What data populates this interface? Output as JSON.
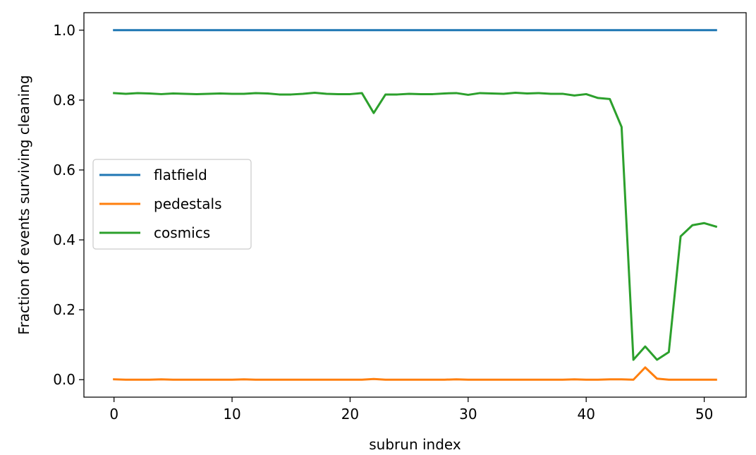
{
  "chart_data": {
    "type": "line",
    "xlabel": "subrun index",
    "ylabel": "Fraction of events surviving cleaning",
    "xlim": [
      -2.55,
      53.55
    ],
    "ylim": [
      -0.05,
      1.05
    ],
    "x_ticks": [
      0,
      10,
      20,
      30,
      40,
      50
    ],
    "x_tick_labels": [
      "0",
      "10",
      "20",
      "30",
      "40",
      "50"
    ],
    "y_ticks": [
      0.0,
      0.2,
      0.4,
      0.6,
      0.8,
      1.0
    ],
    "y_tick_labels": [
      "0.0",
      "0.2",
      "0.4",
      "0.6",
      "0.8",
      "1.0"
    ],
    "grid": false,
    "legend_position": "center-left",
    "x": [
      0,
      1,
      2,
      3,
      4,
      5,
      6,
      7,
      8,
      9,
      10,
      11,
      12,
      13,
      14,
      15,
      16,
      17,
      18,
      19,
      20,
      21,
      22,
      23,
      24,
      25,
      26,
      27,
      28,
      29,
      30,
      31,
      32,
      33,
      34,
      35,
      36,
      37,
      38,
      39,
      40,
      41,
      42,
      43,
      44,
      45,
      46,
      47,
      48,
      49,
      50,
      51
    ],
    "series": [
      {
        "name": "flatfield",
        "color": "#1f77b4",
        "values": [
          1,
          1,
          1,
          1,
          1,
          1,
          1,
          1,
          1,
          1,
          1,
          1,
          1,
          1,
          1,
          1,
          1,
          1,
          1,
          1,
          1,
          1,
          1,
          1,
          1,
          1,
          1,
          1,
          1,
          1,
          1,
          1,
          1,
          1,
          1,
          1,
          1,
          1,
          1,
          1,
          1,
          1,
          1,
          1,
          1,
          1,
          1,
          1,
          1,
          1,
          1,
          1
        ]
      },
      {
        "name": "pedestals",
        "color": "#ff7f0e",
        "values": [
          0.001,
          0.0,
          0.0,
          0.0,
          0.001,
          0.0,
          0.0,
          0.0,
          0.0,
          0.0,
          0.0,
          0.001,
          0.0,
          0.0,
          0.0,
          0.0,
          0.0,
          0.0,
          0.0,
          0.0,
          0.0,
          0.0,
          0.002,
          0.0,
          0.0,
          0.0,
          0.0,
          0.0,
          0.0,
          0.001,
          0.0,
          0.0,
          0.0,
          0.0,
          0.0,
          0.0,
          0.0,
          0.0,
          0.0,
          0.001,
          0.0,
          0.0,
          0.001,
          0.001,
          0.0,
          0.035,
          0.003,
          0.0,
          0.0,
          0.0,
          0.0,
          0.0
        ]
      },
      {
        "name": "cosmics",
        "color": "#2ca02c",
        "values": [
          0.82,
          0.818,
          0.82,
          0.819,
          0.817,
          0.819,
          0.818,
          0.817,
          0.818,
          0.819,
          0.818,
          0.818,
          0.82,
          0.819,
          0.816,
          0.816,
          0.818,
          0.821,
          0.818,
          0.817,
          0.817,
          0.82,
          0.763,
          0.816,
          0.816,
          0.818,
          0.817,
          0.817,
          0.819,
          0.82,
          0.815,
          0.82,
          0.819,
          0.818,
          0.821,
          0.819,
          0.82,
          0.818,
          0.818,
          0.813,
          0.817,
          0.806,
          0.803,
          0.723,
          0.057,
          0.095,
          0.057,
          0.079,
          0.41,
          0.442,
          0.448,
          0.438
        ]
      }
    ]
  }
}
